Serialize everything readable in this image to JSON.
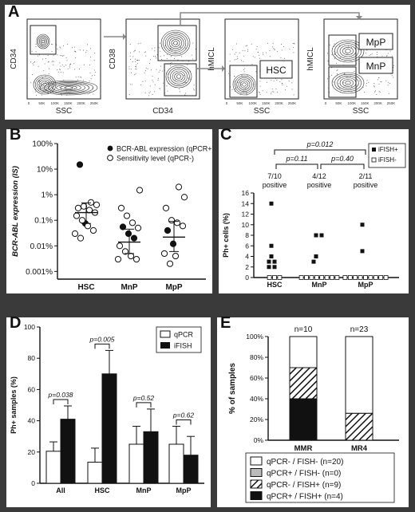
{
  "panel_a": {
    "letter": "A",
    "plots": [
      {
        "xlabel": "SSC",
        "ylabel": "CD34",
        "xticks": [
          "0",
          "50K",
          "100K",
          "150K",
          "200K",
          "250K"
        ],
        "gate_labels": []
      },
      {
        "xlabel": "CD34",
        "ylabel": "CD38",
        "xticks": [],
        "gate_labels": []
      },
      {
        "xlabel": "SSC",
        "ylabel": "hMICL",
        "xticks": [
          "0",
          "50K",
          "100K",
          "150K",
          "200K",
          "250K"
        ],
        "gate_labels": [
          "HSC"
        ]
      },
      {
        "xlabel": "SSC",
        "ylabel": "hMICL",
        "xticks": [
          "0",
          "50K",
          "100K",
          "150K",
          "200K",
          "250K"
        ],
        "gate_labels": [
          "MpP",
          "MnP"
        ]
      }
    ]
  },
  "panel_b": {
    "letter": "B",
    "legend": [
      "BCR-ABL expression (qPCR+)",
      "Sensitivity level (qPCR-)"
    ],
    "chart_data": {
      "type": "scatter",
      "categories": [
        "HSC",
        "MnP",
        "MpP"
      ],
      "ylabel": "BCR-ABL expression (IS)",
      "yscale": "log",
      "yticks": [
        "100%",
        "10%",
        "1%",
        "0.1%",
        "0.01%",
        "0.001%"
      ],
      "ylim": [
        0.0005,
        100
      ],
      "series": [
        {
          "name": "BCR-ABL expression (qPCR+)",
          "marker": "filled",
          "points": [
            {
              "x": "HSC",
              "y": 15
            },
            {
              "x": "HSC",
              "y": 0.075
            },
            {
              "x": "MnP",
              "y": 0.055
            },
            {
              "x": "MnP",
              "y": 0.03
            },
            {
              "x": "MnP",
              "y": 0.02
            },
            {
              "x": "MpP",
              "y": 0.04
            },
            {
              "x": "MpP",
              "y": 0.012
            }
          ]
        },
        {
          "name": "Sensitivity level (qPCR-)",
          "marker": "open",
          "points": [
            {
              "x": "HSC",
              "y": 0.5
            },
            {
              "x": "HSC",
              "y": 0.4
            },
            {
              "x": "HSC",
              "y": 0.3
            },
            {
              "x": "HSC",
              "y": 0.35
            },
            {
              "x": "HSC",
              "y": 0.25
            },
            {
              "x": "HSC",
              "y": 0.2
            },
            {
              "x": "HSC",
              "y": 0.15
            },
            {
              "x": "HSC",
              "y": 0.1
            },
            {
              "x": "HSC",
              "y": 0.06
            },
            {
              "x": "HSC",
              "y": 0.04
            },
            {
              "x": "HSC",
              "y": 0.03
            },
            {
              "x": "HSC",
              "y": 0.02
            },
            {
              "x": "MnP",
              "y": 1.5
            },
            {
              "x": "MnP",
              "y": 0.3
            },
            {
              "x": "MnP",
              "y": 0.15
            },
            {
              "x": "MnP",
              "y": 0.08
            },
            {
              "x": "MnP",
              "y": 0.05
            },
            {
              "x": "MnP",
              "y": 0.01
            },
            {
              "x": "MnP",
              "y": 0.006
            },
            {
              "x": "MnP",
              "y": 0.004
            },
            {
              "x": "MnP",
              "y": 0.003
            },
            {
              "x": "MnP",
              "y": 0.003
            },
            {
              "x": "MpP",
              "y": 2
            },
            {
              "x": "MpP",
              "y": 0.8
            },
            {
              "x": "MpP",
              "y": 0.3
            },
            {
              "x": "MpP",
              "y": 0.1
            },
            {
              "x": "MpP",
              "y": 0.08
            },
            {
              "x": "MpP",
              "y": 0.06
            },
            {
              "x": "MpP",
              "y": 0.005
            },
            {
              "x": "MpP",
              "y": 0.002
            },
            {
              "x": "MpP",
              "y": 0.004
            }
          ]
        }
      ],
      "summary": [
        {
          "x": "HSC",
          "mean": 0.2,
          "low": 0.075,
          "high": 0.48
        },
        {
          "x": "MnP",
          "mean": 0.014,
          "low": 0.005,
          "high": 0.045
        },
        {
          "x": "MpP",
          "mean": 0.022,
          "low": 0.006,
          "high": 0.09
        }
      ]
    }
  },
  "panel_c": {
    "letter": "C",
    "legend": [
      "iFISH+",
      "iFISH-"
    ],
    "pvalues": [
      "p=0.11",
      "p=0.40",
      "p=0.012"
    ],
    "positives": [
      {
        "count": "7/10",
        "word": "positive"
      },
      {
        "count": "4/12",
        "word": "positive"
      },
      {
        "count": "2/11",
        "word": "positive"
      }
    ],
    "chart_data": {
      "type": "scatter",
      "categories": [
        "HSC",
        "MnP",
        "MpP"
      ],
      "ylabel": "Ph+ cells (%)",
      "yticks": [
        "0",
        "2",
        "4",
        "6",
        "8",
        "10",
        "12",
        "14",
        "16"
      ],
      "ylim": [
        0,
        16
      ],
      "series": [
        {
          "name": "iFISH+",
          "marker": "filled-square",
          "points": [
            {
              "x": "HSC",
              "y": 14
            },
            {
              "x": "HSC",
              "y": 6
            },
            {
              "x": "HSC",
              "y": 4
            },
            {
              "x": "HSC",
              "y": 3
            },
            {
              "x": "HSC",
              "y": 3
            },
            {
              "x": "HSC",
              "y": 2
            },
            {
              "x": "HSC",
              "y": 2
            },
            {
              "x": "MnP",
              "y": 8
            },
            {
              "x": "MnP",
              "y": 8
            },
            {
              "x": "MnP",
              "y": 4
            },
            {
              "x": "MnP",
              "y": 3
            },
            {
              "x": "MpP",
              "y": 10
            },
            {
              "x": "MpP",
              "y": 5
            }
          ]
        },
        {
          "name": "iFISH-",
          "marker": "open-square",
          "points": [
            {
              "x": "HSC",
              "y": 0,
              "n": 3
            },
            {
              "x": "MnP",
              "y": 0,
              "n": 8
            },
            {
              "x": "MpP",
              "y": 0,
              "n": 9
            }
          ]
        }
      ]
    }
  },
  "panel_d": {
    "letter": "D",
    "legend": [
      "qPCR",
      "iFISH"
    ],
    "pvalues": [
      "p=0.038",
      "p=0.005",
      "p=0.52",
      "p=0.62"
    ],
    "chart_data": {
      "type": "bar",
      "categories": [
        "All",
        "HSC",
        "MnP",
        "MpP"
      ],
      "ylabel": "Ph+ samples (%)",
      "yticks": [
        "0",
        "20",
        "40",
        "60",
        "80",
        "100"
      ],
      "ylim": [
        0,
        100
      ],
      "series": [
        {
          "name": "qPCR",
          "values": [
            20.5,
            13.5,
            25,
            25
          ],
          "errors": [
            6,
            9,
            11.5,
            11.5
          ]
        },
        {
          "name": "iFISH",
          "values": [
            41,
            70,
            33,
            18
          ],
          "errors": [
            8.5,
            15,
            14.5,
            12
          ]
        }
      ]
    }
  },
  "panel_e": {
    "letter": "E",
    "legend": [
      "qPCR- / FISH- (n=20)",
      "qPCR+ / FISH- (n=0)",
      "qPCR- / FISH+ (n=9)",
      "qPCR+ / FISH+ (n=4)"
    ],
    "group_n": [
      "n=10",
      "n=23"
    ],
    "chart_data": {
      "type": "bar",
      "stacked": true,
      "categories": [
        "MMR",
        "MR4"
      ],
      "ylabel": "% of samples",
      "yticks": [
        "0%",
        "20%",
        "40%",
        "60%",
        "80%",
        "100%"
      ],
      "ylim": [
        0,
        100
      ],
      "series": [
        {
          "name": "qPCR+ / FISH+ (n=4)",
          "values": [
            40,
            0
          ],
          "color": "#111111"
        },
        {
          "name": "qPCR- / FISH+ (n=9)",
          "values": [
            30,
            26
          ],
          "color": "hatch"
        },
        {
          "name": "qPCR+ / FISH- (n=0)",
          "values": [
            0,
            0
          ],
          "color": "#bbbbbb"
        },
        {
          "name": "qPCR- / FISH- (n=20)",
          "values": [
            30,
            74
          ],
          "color": "#ffffff"
        }
      ]
    }
  }
}
